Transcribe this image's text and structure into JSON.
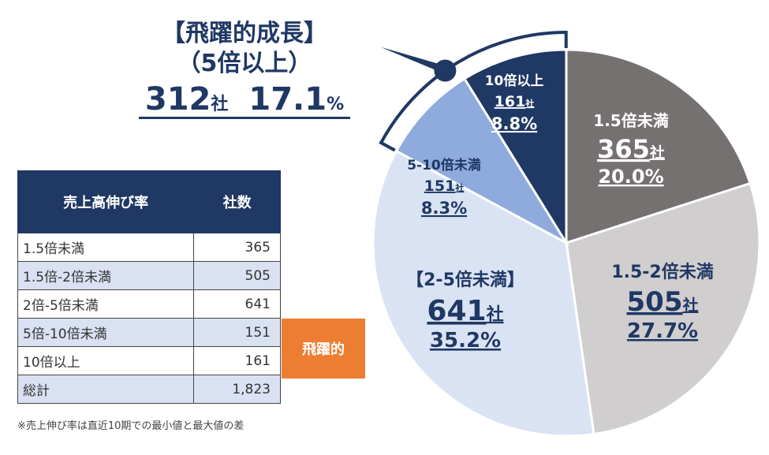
{
  "callout": {
    "line1": "【飛躍的成長】",
    "line2": "（5倍以上）",
    "count": "312",
    "unit": "社",
    "pct": "17.1",
    "pct_unit": "%"
  },
  "table": {
    "headers": [
      "売上高伸び率",
      "社数"
    ],
    "rows": [
      {
        "label": "1.5倍未満",
        "value": "365"
      },
      {
        "label": "1.5倍-2倍未満",
        "value": "505"
      },
      {
        "label": "2倍-5倍未満",
        "value": "641"
      },
      {
        "label": "5倍-10倍未満",
        "value": "151"
      },
      {
        "label": "10倍以上",
        "value": "161"
      },
      {
        "label": "総計",
        "value": "1,823"
      }
    ],
    "tag": "飛躍的"
  },
  "note": "※売上伸び率は直近10期での最小値と最大値の差",
  "chart_data": {
    "type": "pie",
    "unit": "社",
    "slices": [
      {
        "label": "1.5倍未満",
        "value": 365,
        "count_text": "365",
        "pct": "20.0%",
        "color": "#767171",
        "text_color": "#ffffff"
      },
      {
        "label": "1.5-2倍未満",
        "value": 505,
        "count_text": "505",
        "pct": "27.7%",
        "color": "#d0cece",
        "text_color": "#1f3864"
      },
      {
        "label": "【2-5倍未満】",
        "value": 641,
        "count_text": "641",
        "pct": "35.2%",
        "color": "#dae3f3",
        "text_color": "#1f3864"
      },
      {
        "label": "5-10倍未満",
        "value": 151,
        "count_text": "151",
        "pct": "8.3%",
        "color": "#8faadc",
        "text_color": "#1f3864"
      },
      {
        "label": "10倍以上",
        "value": 161,
        "count_text": "161",
        "pct": "8.8%",
        "color": "#1f3864",
        "text_color": "#ffffff"
      }
    ]
  }
}
